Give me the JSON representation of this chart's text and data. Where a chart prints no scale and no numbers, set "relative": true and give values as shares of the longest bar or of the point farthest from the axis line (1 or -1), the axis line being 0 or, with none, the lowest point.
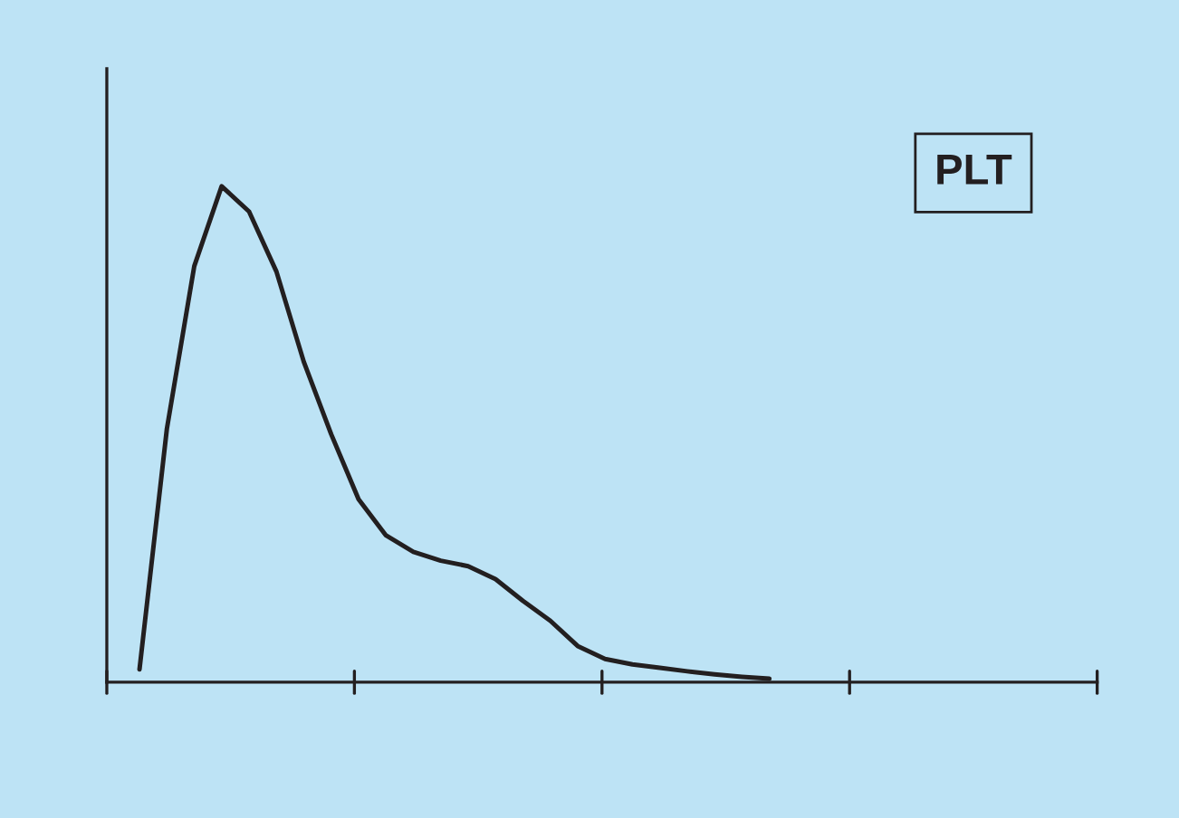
{
  "chart_data": {
    "type": "line",
    "relative": true,
    "title": "PLT",
    "grid": false,
    "marker": "none",
    "line_style": "solid",
    "categories": [
      null,
      null,
      null,
      null,
      null,
      null,
      null,
      null,
      null,
      null,
      null,
      null,
      null,
      null,
      null,
      null,
      null,
      null,
      null,
      null,
      null,
      null,
      null,
      null
    ],
    "series": [
      {
        "color": "#231f20",
        "values": [
          0.026,
          0.511,
          0.839,
          1,
          0.949,
          0.828,
          0.646,
          0.5,
          0.369,
          0.296,
          0.263,
          0.245,
          0.234,
          0.208,
          0.164,
          0.124,
          0.073,
          0.047,
          0.036,
          0.029,
          0.022,
          0.016,
          0.011,
          0.007
        ]
      }
    ]
  }
}
